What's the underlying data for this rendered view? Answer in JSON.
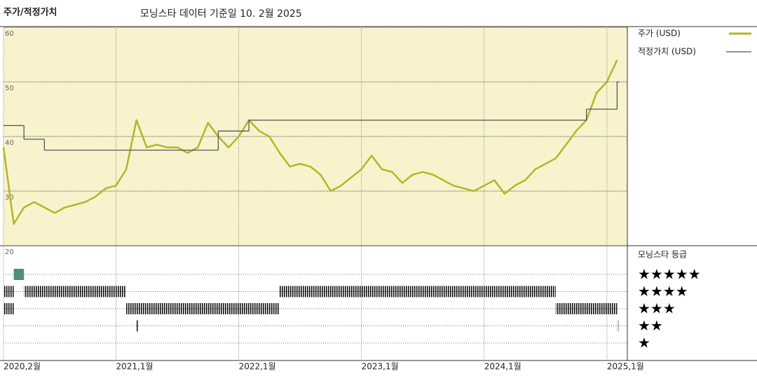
{
  "chart_data": {
    "type": "line",
    "title": "주가/적정가치",
    "subtitle": "모닝스타 데이터 기준일 10. 2월 2025",
    "x": [
      "2020-02",
      "2020-03",
      "2020-04",
      "2020-05",
      "2020-06",
      "2020-07",
      "2020-08",
      "2020-09",
      "2020-10",
      "2020-11",
      "2020-12",
      "2021-01",
      "2021-02",
      "2021-03",
      "2021-04",
      "2021-05",
      "2021-06",
      "2021-07",
      "2021-08",
      "2021-09",
      "2021-10",
      "2021-11",
      "2021-12",
      "2022-01",
      "2022-02",
      "2022-03",
      "2022-04",
      "2022-05",
      "2022-06",
      "2022-07",
      "2022-08",
      "2022-09",
      "2022-10",
      "2022-11",
      "2022-12",
      "2023-01",
      "2023-02",
      "2023-03",
      "2023-04",
      "2023-05",
      "2023-06",
      "2023-07",
      "2023-08",
      "2023-09",
      "2023-10",
      "2023-11",
      "2023-12",
      "2024-01",
      "2024-02",
      "2024-03",
      "2024-04",
      "2024-05",
      "2024-06",
      "2024-07",
      "2024-08",
      "2024-09",
      "2024-10",
      "2024-11",
      "2024-12",
      "2025-01",
      "2025-02"
    ],
    "series": [
      {
        "name": "주가 (USD)",
        "color": "#b3b628",
        "values": [
          38,
          24,
          27,
          28,
          27,
          26,
          27,
          27.5,
          28,
          29,
          30.5,
          31,
          34,
          43,
          38,
          38.5,
          38,
          38,
          37,
          38,
          42.5,
          40,
          38,
          40,
          43,
          41,
          40,
          37,
          34.5,
          35,
          34.5,
          33,
          30,
          31,
          32.5,
          34,
          36.5,
          34,
          33.5,
          31.5,
          33,
          33.5,
          33,
          32,
          31,
          30.5,
          30,
          31,
          32,
          29.5,
          31,
          32,
          34,
          35,
          36,
          38.5,
          41,
          43,
          48,
          50,
          54
        ]
      },
      {
        "name": "적정가치 (USD)",
        "color": "#555555",
        "step": true,
        "x": [
          "2020-02",
          "2020-04",
          "2020-06",
          "2021-11",
          "2022-02",
          "2024-11",
          "2025-02"
        ],
        "values": [
          42,
          39.5,
          37.5,
          41,
          43,
          45,
          50
        ]
      }
    ],
    "xlim": [
      "2020-02",
      "2025-03"
    ],
    "xticks": [
      {
        "value": "2020-02",
        "label": "2020,2월"
      },
      {
        "value": "2021-01",
        "label": "2021,1월"
      },
      {
        "value": "2022-01",
        "label": "2022,1월"
      },
      {
        "value": "2023-01",
        "label": "2023,1월"
      },
      {
        "value": "2024-01",
        "label": "2024,1월"
      },
      {
        "value": "2025-01",
        "label": "2025,1월"
      }
    ],
    "ylim": [
      20,
      60
    ],
    "yticks": [
      20,
      30,
      40,
      50,
      60
    ],
    "grid": true,
    "rating": {
      "title": "모닝스타 등급",
      "levels": [
        {
          "value": 5,
          "label": "★★★★★"
        },
        {
          "value": 4,
          "label": "★★★★"
        },
        {
          "value": 3,
          "label": "★★★"
        },
        {
          "value": 2,
          "label": "★★"
        },
        {
          "value": 1,
          "label": "★"
        }
      ],
      "periods": [
        {
          "stars": 3,
          "start": "2020-02",
          "end": "2020-03"
        },
        {
          "stars": 4,
          "start": "2020-02",
          "end": "2020-03"
        },
        {
          "stars": 5,
          "start": "2020-03",
          "end": "2020-04"
        },
        {
          "stars": 4,
          "start": "2020-04",
          "end": "2021-02"
        },
        {
          "stars": 3,
          "start": "2021-02",
          "end": "2021-03"
        },
        {
          "stars": 2,
          "start": "2021-03",
          "end": "2021-03"
        },
        {
          "stars": 3,
          "start": "2021-03",
          "end": "2022-05"
        },
        {
          "stars": 4,
          "start": "2022-05",
          "end": "2024-08"
        },
        {
          "stars": 3,
          "start": "2024-08",
          "end": "2025-02"
        },
        {
          "stars": 2,
          "start": "2025-02",
          "end": "2025-02"
        }
      ],
      "five_star_color": "#4f8f7c"
    }
  }
}
